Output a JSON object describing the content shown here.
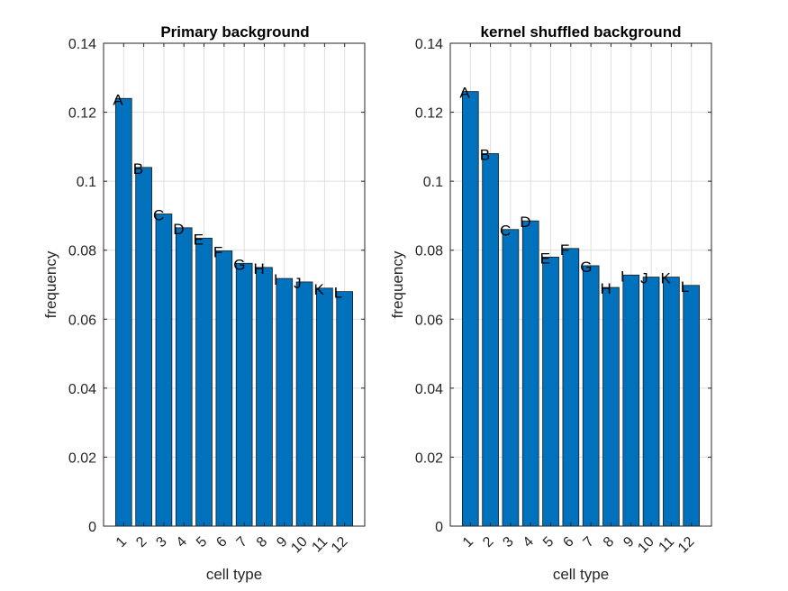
{
  "chart_data": [
    {
      "type": "bar",
      "title": "Primary background",
      "xlabel": "cell type",
      "ylabel": "frequency",
      "categories": [
        "1",
        "2",
        "3",
        "4",
        "5",
        "6",
        "7",
        "8",
        "9",
        "10",
        "11",
        "12"
      ],
      "values": [
        0.124,
        0.104,
        0.0905,
        0.0865,
        0.0835,
        0.0798,
        0.0762,
        0.075,
        0.0718,
        0.0708,
        0.069,
        0.068
      ],
      "bar_labels": [
        "A",
        "B",
        "C",
        "D",
        "E",
        "F",
        "G",
        "H",
        "I",
        "J",
        "K",
        "L"
      ],
      "yticks": [
        "0",
        "0.02",
        "0.04",
        "0.06",
        "0.08",
        "0.1",
        "0.12",
        "0.14"
      ],
      "ylim": [
        0,
        0.14
      ],
      "grid": true,
      "bar_color": "#0072BD"
    },
    {
      "type": "bar",
      "title": "kernel shuffled background",
      "xlabel": "cell type",
      "ylabel": "frequency",
      "categories": [
        "1",
        "2",
        "3",
        "4",
        "5",
        "6",
        "7",
        "8",
        "9",
        "10",
        "11",
        "12"
      ],
      "values": [
        0.126,
        0.108,
        0.086,
        0.0885,
        0.078,
        0.0805,
        0.0755,
        0.0692,
        0.0728,
        0.0722,
        0.0722,
        0.0698
      ],
      "bar_labels": [
        "A",
        "B",
        "C",
        "D",
        "E",
        "F",
        "G",
        "H",
        "I",
        "J",
        "K",
        "L"
      ],
      "yticks": [
        "0",
        "0.02",
        "0.04",
        "0.06",
        "0.08",
        "0.1",
        "0.12",
        "0.14"
      ],
      "ylim": [
        0,
        0.14
      ],
      "grid": true,
      "bar_color": "#0072BD"
    }
  ]
}
